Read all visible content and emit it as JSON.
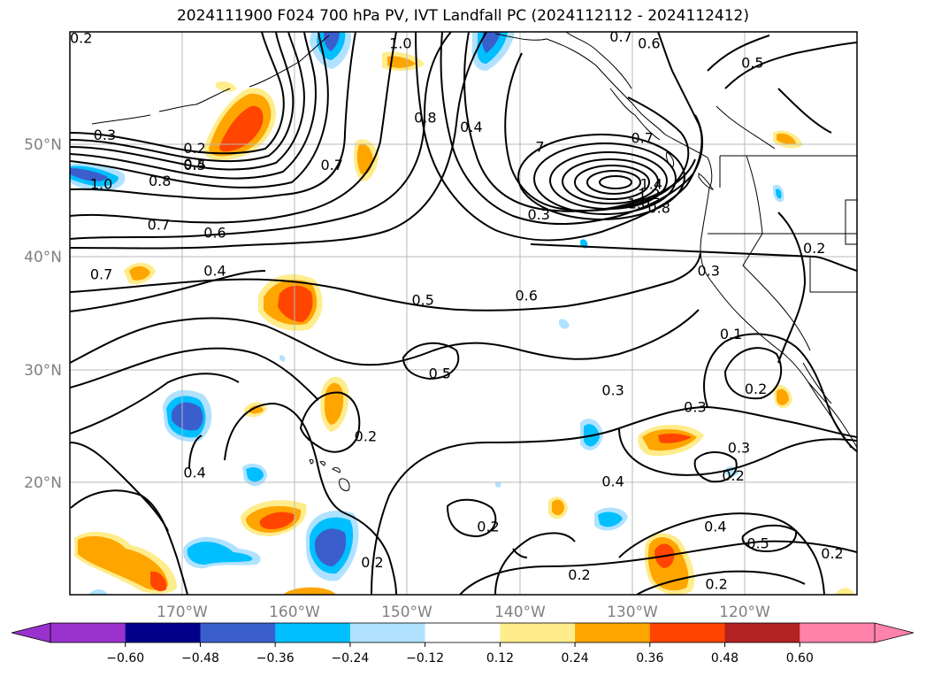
{
  "title": "2024111900 F024 700 hPa PV, IVT Landfall PC (2024112112 - 2024112412)",
  "map": {
    "lon_range": [
      180,
      110
    ],
    "lat_range": [
      10,
      60
    ],
    "lat_ticks": [
      "20°N",
      "30°N",
      "40°N",
      "50°N"
    ],
    "lon_ticks": [
      "170°W",
      "160°W",
      "150°W",
      "140°W",
      "130°W",
      "120°W"
    ],
    "grid": true,
    "contour_labels": [
      {
        "text": "0.2",
        "lon": 179,
        "lat": 59.5
      },
      {
        "text": "1.0",
        "lon": 150.6,
        "lat": 59
      },
      {
        "text": "0.7",
        "lon": 131,
        "lat": 59.6
      },
      {
        "text": "0.6",
        "lon": 128.5,
        "lat": 59
      },
      {
        "text": "0.5",
        "lon": 119.3,
        "lat": 57.3
      },
      {
        "text": "0.3",
        "lon": 176.9,
        "lat": 50.9
      },
      {
        "text": "0.2",
        "lon": 168.9,
        "lat": 49.7
      },
      {
        "text": "0.4",
        "lon": 168.9,
        "lat": 48.3
      },
      {
        "text": "0.5",
        "lon": 168.9,
        "lat": 48.2
      },
      {
        "text": "0.8",
        "lon": 172,
        "lat": 46.8
      },
      {
        "text": "1.0",
        "lon": 177.2,
        "lat": 46.5
      },
      {
        "text": "0.7",
        "lon": 156.7,
        "lat": 48.2
      },
      {
        "text": "0.8",
        "lon": 148.4,
        "lat": 52.4
      },
      {
        "text": "0.4",
        "lon": 144.3,
        "lat": 51.6
      },
      {
        "text": "0.7",
        "lon": 129.1,
        "lat": 50.6
      },
      {
        "text": "1.4",
        "lon": 128.3,
        "lat": 46.5
      },
      {
        "text": "1.2",
        "lon": 128.5,
        "lat": 45.6
      },
      {
        "text": "1.0",
        "lon": 129.4,
        "lat": 44.8
      },
      {
        "text": "0.8",
        "lon": 127.6,
        "lat": 44.4
      },
      {
        "text": "0.3",
        "lon": 138.3,
        "lat": 43.8
      },
      {
        "text": "0.7",
        "lon": 172.1,
        "lat": 42.9
      },
      {
        "text": "0.6",
        "lon": 167.1,
        "lat": 42.2
      },
      {
        "text": "0.2",
        "lon": 113.8,
        "lat": 40.8
      },
      {
        "text": "0.7",
        "lon": 177.2,
        "lat": 38.5
      },
      {
        "text": "0.4",
        "lon": 167.1,
        "lat": 38.8
      },
      {
        "text": "0.3",
        "lon": 123.2,
        "lat": 38.8
      },
      {
        "text": "0.5",
        "lon": 148.6,
        "lat": 36.2
      },
      {
        "text": "0.6",
        "lon": 139.4,
        "lat": 36.6
      },
      {
        "text": "0.1",
        "lon": 121.2,
        "lat": 33.2
      },
      {
        "text": "0.5",
        "lon": 147.1,
        "lat": 29.7
      },
      {
        "text": "0.3",
        "lon": 131.7,
        "lat": 28.2
      },
      {
        "text": "0.2",
        "lon": 119,
        "lat": 28.3
      },
      {
        "text": "0.3",
        "lon": 124.4,
        "lat": 26.7
      },
      {
        "text": "0.2",
        "lon": 153.7,
        "lat": 24.1
      },
      {
        "text": "0.3",
        "lon": 120.5,
        "lat": 23.1
      },
      {
        "text": "0.4",
        "lon": 168.9,
        "lat": 20.9
      },
      {
        "text": "0.4",
        "lon": 131.7,
        "lat": 20.1
      },
      {
        "text": "0.2",
        "lon": 121,
        "lat": 20.6
      },
      {
        "text": "0.2",
        "lon": 142.8,
        "lat": 16.1
      },
      {
        "text": "0.4",
        "lon": 122.6,
        "lat": 16.1
      },
      {
        "text": "0.5",
        "lon": 118.8,
        "lat": 14.6
      },
      {
        "text": "0.2",
        "lon": 153.1,
        "lat": 12.9
      },
      {
        "text": "0.2",
        "lon": 112.2,
        "lat": 13.7
      },
      {
        "text": "0.2",
        "lon": 134.7,
        "lat": 11.8
      },
      {
        "text": "0.2",
        "lon": 122.5,
        "lat": 11
      },
      {
        "text": "7",
        "lon": 138.2,
        "lat": 49.8
      }
    ]
  },
  "colorbar": {
    "bounds": [
      -0.72,
      -0.6,
      -0.48,
      -0.36,
      -0.24,
      -0.12,
      0.12,
      0.24,
      0.36,
      0.48,
      0.6,
      0.72
    ],
    "colors": [
      "#9932cc",
      "#00008b",
      "#3a5fcd",
      "#00bfff",
      "#b0e2ff",
      "#ffffff",
      "#ffec8b",
      "#ffa500",
      "#ff4500",
      "#b22222",
      "#ff82ab"
    ],
    "extend_low_color": "#9932cc",
    "extend_high_color": "#ff82ab",
    "tick_labels": [
      "−0.60",
      "−0.48",
      "−0.36",
      "−0.24",
      "−0.12",
      "0.12",
      "0.24",
      "0.36",
      "0.48",
      "0.60"
    ]
  }
}
